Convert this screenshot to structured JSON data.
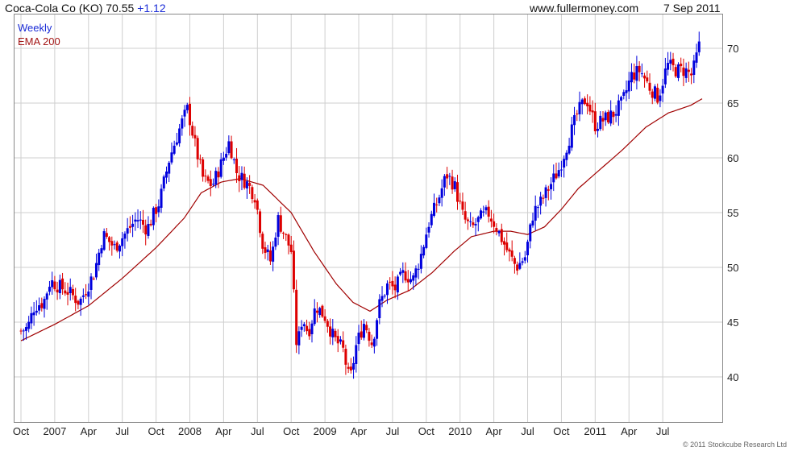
{
  "header": {
    "title": "Coca-Cola Co (KO) 70.55",
    "change": "+1.12",
    "source": "www.fullermoney.com",
    "date": "7 Sep 2011"
  },
  "legend": {
    "interval": "Weekly",
    "ema": "EMA 200"
  },
  "footer": {
    "copyright": "© 2011 Stockcube Research Ltd"
  },
  "colors": {
    "up": "#0000dd",
    "down": "#dd0000",
    "ema": "#a00000",
    "grid": "#cfcfcf",
    "frame": "#888888"
  },
  "chart_data": {
    "type": "candlestick",
    "y_ticks": [
      40,
      45,
      50,
      55,
      60,
      65,
      70
    ],
    "ylim": [
      37.5,
      72.5
    ],
    "x_range": [
      0,
      61
    ],
    "x_ticks": [
      {
        "label": "Oct",
        "m": 0
      },
      {
        "label": "2007",
        "m": 3
      },
      {
        "label": "Apr",
        "m": 6
      },
      {
        "label": "Jul",
        "m": 9
      },
      {
        "label": "Oct",
        "m": 12
      },
      {
        "label": "2008",
        "m": 15
      },
      {
        "label": "Apr",
        "m": 18
      },
      {
        "label": "Jul",
        "m": 21
      },
      {
        "label": "Oct",
        "m": 24
      },
      {
        "label": "2009",
        "m": 27
      },
      {
        "label": "Apr",
        "m": 30
      },
      {
        "label": "Jul",
        "m": 33
      },
      {
        "label": "Oct",
        "m": 36
      },
      {
        "label": "2010",
        "m": 39
      },
      {
        "label": "Apr",
        "m": 42
      },
      {
        "label": "Jul",
        "m": 45
      },
      {
        "label": "Oct",
        "m": 48
      },
      {
        "label": "2011",
        "m": 51
      },
      {
        "label": "Apr",
        "m": 54
      },
      {
        "label": "Jul",
        "m": 57
      }
    ],
    "price_path": [
      [
        0.0,
        44.2
      ],
      [
        0.6,
        44.5
      ],
      [
        1.2,
        46.5
      ],
      [
        2.0,
        46.8
      ],
      [
        2.6,
        48.8
      ],
      [
        3.3,
        48.3
      ],
      [
        4.2,
        47.8
      ],
      [
        5.2,
        46.8
      ],
      [
        6.5,
        49.5
      ],
      [
        7.3,
        53.0
      ],
      [
        8.3,
        51.8
      ],
      [
        9.2,
        53.0
      ],
      [
        10.3,
        54.5
      ],
      [
        11.2,
        53.5
      ],
      [
        12.3,
        56.0
      ],
      [
        13.2,
        60.0
      ],
      [
        14.2,
        63.0
      ],
      [
        14.8,
        64.5
      ],
      [
        15.5,
        61.0
      ],
      [
        16.2,
        58.0
      ],
      [
        17.0,
        57.5
      ],
      [
        17.8,
        59.5
      ],
      [
        18.5,
        61.5
      ],
      [
        19.2,
        58.5
      ],
      [
        20.0,
        57.8
      ],
      [
        20.8,
        56.5
      ],
      [
        21.5,
        52.0
      ],
      [
        22.2,
        50.5
      ],
      [
        22.8,
        54.5
      ],
      [
        23.4,
        53.0
      ],
      [
        24.0,
        51.5
      ],
      [
        24.5,
        42.5
      ],
      [
        25.0,
        45.5
      ],
      [
        25.5,
        44.0
      ],
      [
        26.2,
        46.5
      ],
      [
        27.0,
        45.5
      ],
      [
        27.8,
        43.5
      ],
      [
        28.6,
        42.5
      ],
      [
        29.2,
        39.5
      ],
      [
        29.8,
        43.0
      ],
      [
        30.5,
        45.0
      ],
      [
        31.2,
        43.0
      ],
      [
        31.8,
        46.5
      ],
      [
        32.6,
        48.5
      ],
      [
        33.2,
        48.0
      ],
      [
        34.0,
        49.5
      ],
      [
        34.8,
        48.8
      ],
      [
        35.5,
        51.0
      ],
      [
        36.2,
        54.0
      ],
      [
        37.0,
        56.0
      ],
      [
        37.8,
        58.5
      ],
      [
        38.5,
        57.5
      ],
      [
        39.3,
        54.5
      ],
      [
        40.0,
        53.5
      ],
      [
        40.8,
        54.5
      ],
      [
        41.5,
        55.0
      ],
      [
        42.3,
        53.5
      ],
      [
        43.2,
        51.5
      ],
      [
        44.0,
        50.0
      ],
      [
        44.8,
        51.0
      ],
      [
        45.5,
        55.0
      ],
      [
        46.2,
        56.0
      ],
      [
        47.0,
        57.5
      ],
      [
        47.8,
        59.0
      ],
      [
        48.6,
        61.5
      ],
      [
        49.4,
        64.0
      ],
      [
        50.2,
        65.5
      ],
      [
        51.0,
        63.0
      ],
      [
        51.8,
        63.5
      ],
      [
        52.6,
        64.0
      ],
      [
        53.4,
        65.0
      ],
      [
        54.2,
        67.5
      ],
      [
        55.0,
        68.0
      ],
      [
        55.8,
        66.5
      ],
      [
        56.6,
        65.5
      ],
      [
        57.4,
        68.5
      ],
      [
        58.2,
        68.0
      ],
      [
        59.0,
        68.0
      ],
      [
        59.6,
        67.5
      ],
      [
        60.3,
        70.5
      ]
    ],
    "ema_path": [
      [
        0.0,
        43.3
      ],
      [
        3.0,
        44.8
      ],
      [
        6.0,
        46.5
      ],
      [
        9.0,
        49.0
      ],
      [
        12.0,
        51.8
      ],
      [
        14.5,
        54.5
      ],
      [
        16.0,
        56.8
      ],
      [
        17.8,
        57.8
      ],
      [
        19.5,
        58.1
      ],
      [
        21.5,
        57.5
      ],
      [
        24.0,
        55.0
      ],
      [
        26.0,
        51.5
      ],
      [
        28.0,
        48.5
      ],
      [
        29.5,
        46.8
      ],
      [
        31.0,
        46.0
      ],
      [
        32.5,
        47.0
      ],
      [
        34.5,
        47.9
      ],
      [
        36.5,
        49.5
      ],
      [
        38.5,
        51.5
      ],
      [
        40.0,
        52.8
      ],
      [
        42.0,
        53.3
      ],
      [
        43.5,
        53.3
      ],
      [
        45.0,
        53.0
      ],
      [
        46.5,
        53.7
      ],
      [
        48.0,
        55.3
      ],
      [
        49.5,
        57.2
      ],
      [
        51.5,
        59.0
      ],
      [
        53.5,
        60.8
      ],
      [
        55.5,
        62.8
      ],
      [
        57.5,
        64.1
      ],
      [
        59.5,
        64.8
      ],
      [
        60.5,
        65.4
      ]
    ]
  }
}
